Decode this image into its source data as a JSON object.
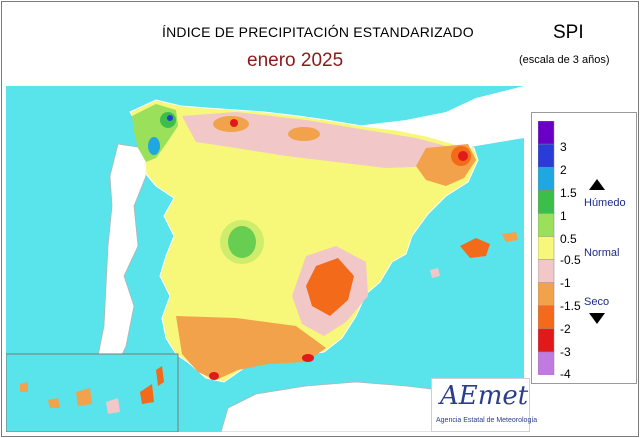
{
  "header": {
    "title": "ÍNDICE DE PRECIPITACIÓN ESTANDARIZADO",
    "month": "enero  2025",
    "spi_label": "SPI",
    "scale_note": "(escala de 3 años)"
  },
  "legend": {
    "ticks": [
      "3",
      "2",
      "1.5",
      "1",
      "0.5",
      "-0.5",
      "-1",
      "-1.5",
      "-2",
      "-3",
      "-4"
    ],
    "colors": [
      "#6a00c8",
      "#2a3bd8",
      "#1fa8e0",
      "#3cbf4a",
      "#9be05a",
      "#f7f77a",
      "#f2c7c7",
      "#f2a24a",
      "#f26a1a",
      "#e01a1a",
      "#c07ae0"
    ],
    "category_wet": "Húmedo",
    "category_normal": "Normal",
    "category_dry": "Seco"
  },
  "logo": {
    "name": "AEmet",
    "subtitle": "Agencia Estatal de Meteorología"
  },
  "map_colors": {
    "sea": "#59e3ea",
    "land_outside": "#ffffff",
    "borders": "#ffffff"
  }
}
